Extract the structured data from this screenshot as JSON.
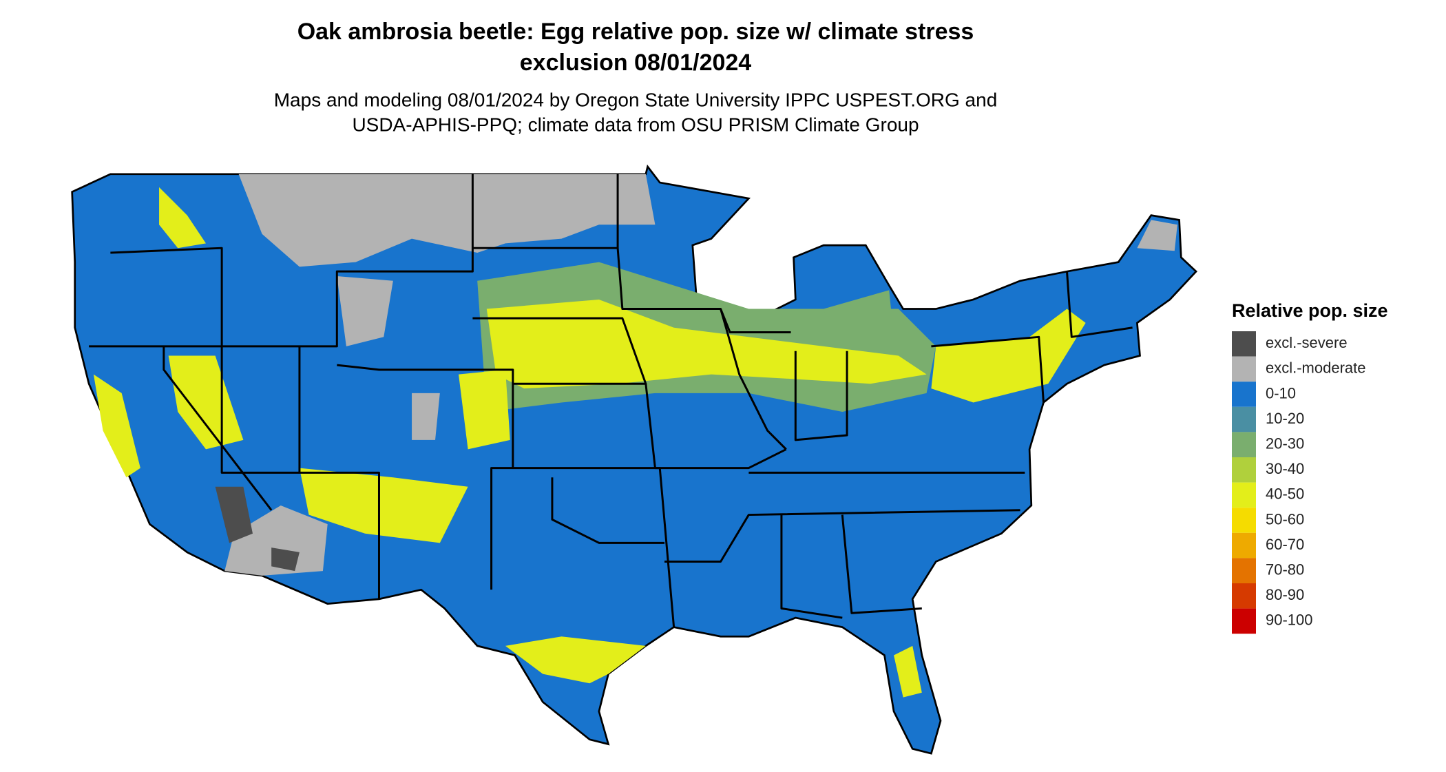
{
  "header": {
    "title_lines": [
      "Oak ambrosia beetle: Egg relative pop. size w/ climate stress",
      "exclusion 08/01/2024"
    ],
    "subtitle_lines": [
      "Maps and modeling 08/01/2024 by Oregon State University IPPC USPEST.ORG and",
      "USDA-APHIS-PPQ; climate data from OSU PRISM Climate Group"
    ]
  },
  "legend": {
    "title": "Relative pop. size",
    "items": [
      {
        "label": "excl.-severe",
        "color": "#4d4d4d"
      },
      {
        "label": "excl.-moderate",
        "color": "#b3b3b3"
      },
      {
        "label": "0-10",
        "color": "#1874cd"
      },
      {
        "label": "10-20",
        "color": "#4a8fa3"
      },
      {
        "label": "20-30",
        "color": "#7aae6e"
      },
      {
        "label": "30-40",
        "color": "#b0d03c"
      },
      {
        "label": "40-50",
        "color": "#e3ee1a"
      },
      {
        "label": "50-60",
        "color": "#f5dc00"
      },
      {
        "label": "60-70",
        "color": "#eeaa00"
      },
      {
        "label": "70-80",
        "color": "#e47300"
      },
      {
        "label": "80-90",
        "color": "#d63a00"
      },
      {
        "label": "90-100",
        "color": "#cc0000"
      }
    ]
  }
}
